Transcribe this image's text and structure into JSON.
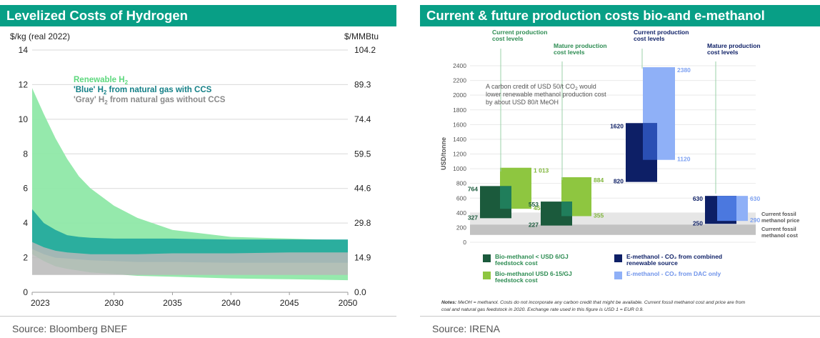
{
  "left": {
    "header": "Levelized Costs of Hydrogen",
    "source": "Source: Bloomberg BNEF",
    "colors": {
      "header": "#089f86",
      "renewable": "#8fe8a8",
      "blue": "#1fa79c",
      "gray": "#b9b9b9"
    },
    "chart_data": {
      "type": "area",
      "ylabel_left": "$/kg (real 2022)",
      "ylabel_right": "$/MMBtu",
      "ylim": [
        0,
        14
      ],
      "xlim": [
        2023,
        2050
      ],
      "yticks": [
        "0",
        "2",
        "4",
        "6",
        "8",
        "10",
        "12",
        "14"
      ],
      "yticks_right": [
        "0.0",
        "14.9",
        "29.8",
        "44.6",
        "59.5",
        "74.4",
        "89.3",
        "104.2"
      ],
      "xticks": [
        "2023",
        "2030",
        "2035",
        "2040",
        "2045",
        "2050"
      ],
      "grid": true,
      "legend": [
        {
          "text": "Renewable H",
          "sub": "2",
          "rest": "",
          "color": "#5ed87e"
        },
        {
          "text": "'Blue' H",
          "sub": "2",
          "rest": " from natural gas with CCS",
          "color": "#137f86"
        },
        {
          "text": "'Gray' H",
          "sub": "2",
          "rest": " from natural gas without CCS",
          "color": "#8a8a8a"
        }
      ],
      "x": [
        2023,
        2024,
        2025,
        2026,
        2027,
        2028,
        2030,
        2032,
        2035,
        2040,
        2045,
        2050
      ],
      "series": [
        {
          "name": "Renewable H2",
          "upper": [
            11.8,
            10.3,
            8.9,
            7.7,
            6.7,
            6.0,
            5.0,
            4.3,
            3.6,
            3.2,
            3.1,
            3.0
          ],
          "lower": [
            2.2,
            1.8,
            1.5,
            1.35,
            1.25,
            1.15,
            1.05,
            0.95,
            0.9,
            0.8,
            0.75,
            0.7
          ]
        },
        {
          "name": "'Blue' H2 from natural gas with CCS",
          "upper": [
            4.8,
            4.0,
            3.6,
            3.3,
            3.2,
            3.15,
            3.1,
            3.1,
            3.1,
            3.05,
            3.05,
            3.05
          ],
          "lower": [
            2.5,
            2.2,
            2.0,
            1.95,
            1.9,
            1.85,
            1.8,
            1.75,
            1.75,
            1.7,
            1.7,
            1.7
          ]
        },
        {
          "name": "'Gray' H2 from natural gas without CCS",
          "upper": [
            2.9,
            2.6,
            2.4,
            2.3,
            2.25,
            2.2,
            2.2,
            2.2,
            2.25,
            2.25,
            2.3,
            2.3
          ],
          "lower": [
            1.0,
            1.0,
            1.0,
            1.0,
            1.0,
            1.0,
            1.0,
            1.0,
            1.0,
            1.0,
            1.0,
            1.0
          ]
        }
      ]
    }
  },
  "right": {
    "header": "Current & future production costs bio-and e-methanol",
    "source": "Source: IRENA",
    "colors": {
      "bio_low": "#1b5a3c",
      "bio_low_hi": "#207e5b",
      "bio_high": "#8ec640",
      "e_renew": "#0d1f66",
      "e_renew_hi": "#2a4fb4",
      "e_dac": "#8fb0f7",
      "e_dac_hi": "#4b78df",
      "fossil_price": "#e6e6e6",
      "fossil_cost": "#c2c2c2"
    },
    "chart_data": {
      "type": "bar",
      "ylabel": "USD/tonne",
      "ylim": [
        0,
        2400
      ],
      "yticks": [
        "0",
        "200",
        "400",
        "600",
        "800",
        "1000",
        "1200",
        "1400",
        "1600",
        "1800",
        "2000",
        "2200",
        "2400"
      ],
      "groups": [
        {
          "label": "Current production cost levels"
        },
        {
          "label": "Mature production cost levels"
        },
        {
          "label": "Current production cost levels"
        },
        {
          "label": "Mature production cost levels"
        }
      ],
      "bars": [
        {
          "series": "bio_high",
          "low": 455,
          "high": 1013,
          "low_label": "455",
          "high_label": "1 013"
        },
        {
          "series": "bio_low",
          "low": 327,
          "high": 764,
          "low_label": "327",
          "high_label": "764"
        },
        {
          "series": "bio_high",
          "low": 355,
          "high": 884,
          "low_label": "355",
          "high_label": "884"
        },
        {
          "series": "bio_low",
          "low": 227,
          "high": 553,
          "low_label": "227",
          "high_label": "553"
        },
        {
          "series": "e_dac",
          "low": 1120,
          "high": 2380,
          "low_label": "1120",
          "high_label": "2380"
        },
        {
          "series": "e_renew",
          "low": 820,
          "high": 1620,
          "low_label": "820",
          "high_label": "1620"
        },
        {
          "series": "e_dac",
          "low": 290,
          "high": 630,
          "low_label": "290",
          "high_label": "630"
        },
        {
          "series": "e_renew",
          "low": 250,
          "high": 630,
          "low_label": "250",
          "high_label": "630"
        }
      ],
      "bands": [
        {
          "name": "Current fossil methanol price",
          "low": 100,
          "high": 400
        },
        {
          "name": "Current fossil methanol cost",
          "low": 100,
          "high": 240
        }
      ],
      "band_labels": [
        {
          "line1": "Current fossil",
          "line2": "methanol price"
        },
        {
          "line1": "Current fossil",
          "line2": "methanol cost"
        }
      ],
      "annotation": {
        "line1": "A carbon credit of USD 50/t CO",
        "line1_sub": "2",
        "line1_end": " would",
        "line2": "lower renewable methanol production cost",
        "line3": "by about USD 80/t MeOH"
      },
      "legend": [
        {
          "line1": "Bio-methanol < USD 6/GJ",
          "line2": "feedstock cost",
          "series": "bio_low"
        },
        {
          "line1": "Bio-methanol USD 6-15/GJ",
          "line2": "feedstock cost",
          "series": "bio_high"
        },
        {
          "line1": "E-methanol - CO₂ from combined",
          "line2": "renewable source",
          "series": "e_renew"
        },
        {
          "line1": "E-methanol - CO₂ from DAC only",
          "line2": "",
          "series": "e_dac"
        }
      ],
      "notes_label": "Notes:",
      "notes_line1": " MeOH = methanol. Costs do not incorporate any carbon credit that might be available. Current fossil methanol cost and price are from",
      "notes_line2": "coal and natural gas feedstock in 2020. Exchange rate used in this figure is USD 1 = EUR 0.9."
    }
  }
}
